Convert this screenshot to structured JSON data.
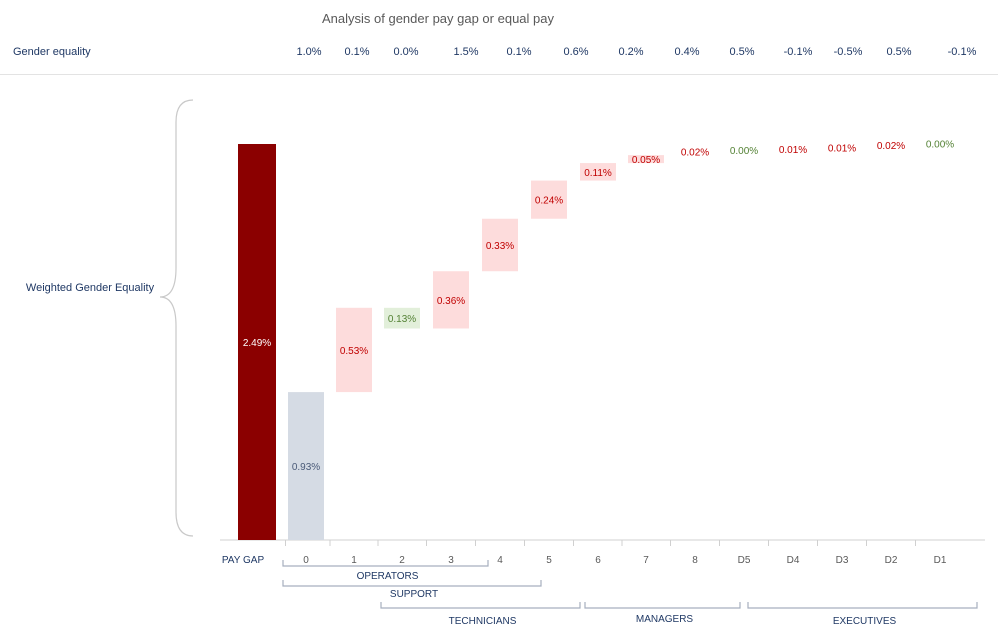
{
  "header": {
    "title": "Analysis of gender pay gap or equal pay",
    "row_label": "Gender equality",
    "equality_values": [
      "1.0%",
      "0.1%",
      "0.0%",
      "1.5%",
      "0.1%",
      "0.6%",
      "0.2%",
      "0.4%",
      "0.5%",
      "-0.1%",
      "-0.5%",
      "0.5%",
      "-0.1%"
    ]
  },
  "side_label": "Weighted Gender Equality",
  "groups": [
    {
      "label": "OPERATORS"
    },
    {
      "label": "SUPPORT"
    },
    {
      "label": "TECHNICIANS"
    },
    {
      "label": "MANAGERS"
    },
    {
      "label": "EXECUTIVES"
    }
  ],
  "colors": {
    "pay_gap_bar": "#8b0000",
    "base_bar": "#d5dbe4",
    "increase_fill": "#fddcdc",
    "increase_text": "#c00000",
    "decrease_fill": "#e2efda",
    "decrease_text": "#548235",
    "axis_text": "#595959",
    "bracket": "#a6afbf"
  },
  "chart_data": {
    "type": "bar",
    "subtype": "waterfall",
    "title": "Analysis of gender pay gap or equal pay",
    "ylabel": "Weighted Gender Equality",
    "unit": "%",
    "categories": [
      "PAY GAP",
      "0",
      "1",
      "2",
      "3",
      "4",
      "5",
      "6",
      "7",
      "8",
      "D5",
      "D4",
      "D3",
      "D2",
      "D1"
    ],
    "values": [
      2.49,
      0.93,
      0.53,
      0.13,
      0.36,
      0.33,
      0.24,
      0.11,
      0.05,
      0.02,
      0.0,
      0.01,
      0.01,
      0.02,
      0.0
    ],
    "labels": [
      "2.49%",
      "0.93%",
      "0.53%",
      "0.13%",
      "0.36%",
      "0.33%",
      "0.24%",
      "0.11%",
      "0.05%",
      "0.02%",
      "0.00%",
      "0.01%",
      "0.01%",
      "0.02%",
      "0.00%"
    ],
    "kind": [
      "total",
      "base",
      "increase",
      "decrease",
      "increase",
      "increase",
      "increase",
      "increase",
      "increase",
      "increase",
      "decrease",
      "increase",
      "increase",
      "increase",
      "decrease"
    ],
    "ylim": [
      0,
      2.49
    ],
    "grid": false,
    "legend": "none"
  }
}
